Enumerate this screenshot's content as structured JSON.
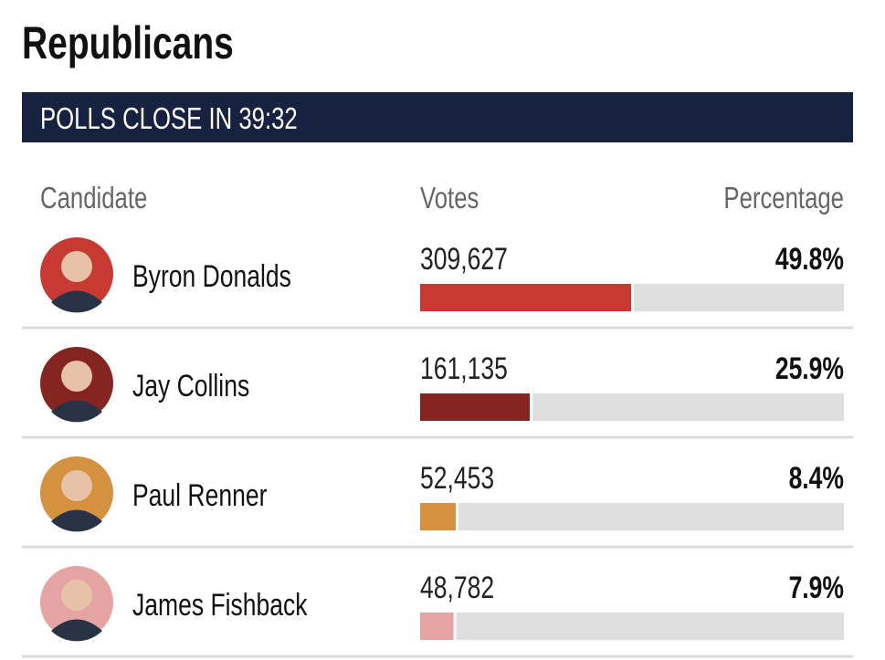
{
  "header": {
    "title": "Republicans",
    "banner": "POLLS CLOSE IN 39:32"
  },
  "table": {
    "columns": [
      "Candidate",
      "Votes",
      "Percentage"
    ],
    "rows": [
      {
        "name": "Byron Donalds",
        "votes": "309,627",
        "percentage": 49.8,
        "percentage_label": "49.8%",
        "color": "#c63a33"
      },
      {
        "name": "Jay Collins",
        "votes": "161,135",
        "percentage": 25.9,
        "percentage_label": "25.9%",
        "color": "#842522"
      },
      {
        "name": "Paul Renner",
        "votes": "52,453",
        "percentage": 8.4,
        "percentage_label": "8.4%",
        "color": "#d4913f"
      },
      {
        "name": "James Fishback",
        "votes": "48,782",
        "percentage": 7.9,
        "percentage_label": "7.9%",
        "color": "#e6a3a3"
      }
    ]
  }
}
